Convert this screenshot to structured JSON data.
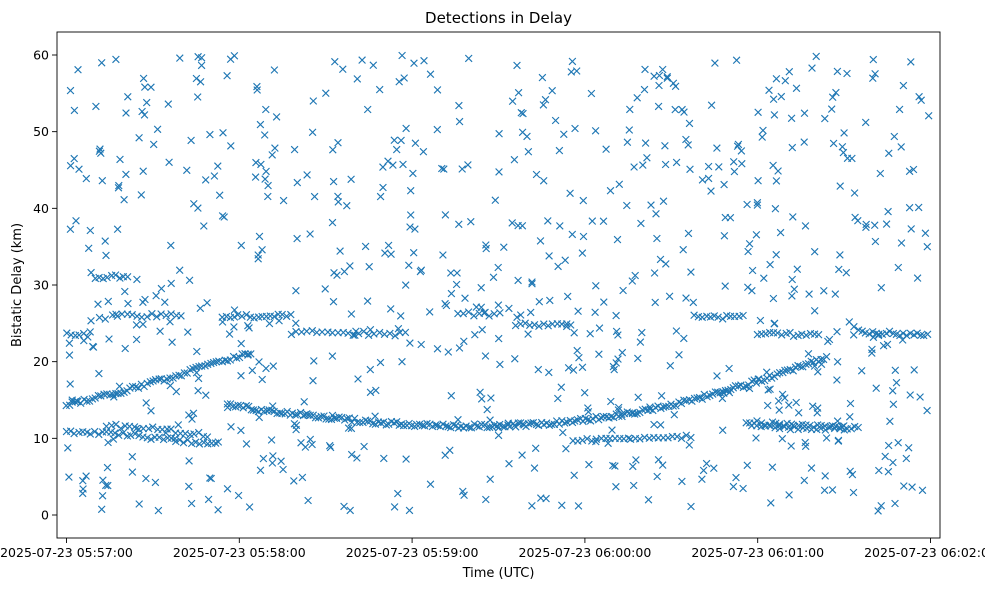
{
  "chart_data": {
    "type": "scatter",
    "title": "Detections in Delay",
    "xlabel": "Time (UTC)",
    "ylabel": "Bistatic Delay (km)",
    "marker": "x",
    "color": "#1f77b4",
    "grid": false,
    "legend": "none",
    "x_unit": "seconds after 2025-07-23 05:57:00 UTC",
    "xlim": [
      -3.3,
      303.3
    ],
    "ylim": [
      -3,
      63
    ],
    "xticks": [
      {
        "value": 0,
        "label": "2025-07-23 05:57:00"
      },
      {
        "value": 60,
        "label": "2025-07-23 05:58:00"
      },
      {
        "value": 120,
        "label": "2025-07-23 05:59:00"
      },
      {
        "value": 180,
        "label": "2025-07-23 06:00:00"
      },
      {
        "value": 240,
        "label": "2025-07-23 06:01:00"
      },
      {
        "value": 300,
        "label": "2025-07-23 06:02:00"
      }
    ],
    "yticks": [
      0,
      10,
      20,
      30,
      40,
      50,
      60
    ],
    "tracks": [
      {
        "x": [
          0,
          8,
          16,
          24,
          32,
          40,
          48,
          56,
          64
        ],
        "y": [
          14.3,
          15.0,
          15.8,
          16.6,
          17.5,
          18.4,
          19.4,
          20.3,
          21.2
        ],
        "step": 1
      },
      {
        "x": [
          56,
          70,
          90,
          110,
          130,
          150,
          170,
          190,
          210,
          230,
          250,
          264
        ],
        "y": [
          14.3,
          13.6,
          12.7,
          12.0,
          11.6,
          11.6,
          12.0,
          12.9,
          14.3,
          16.3,
          18.7,
          20.6
        ],
        "step": 0.9
      },
      {
        "x": [
          0,
          10,
          20,
          30,
          40,
          52
        ],
        "y": [
          10.8,
          10.7,
          10.5,
          10.1,
          9.7,
          9.3
        ],
        "step": 1.4
      },
      {
        "x": [
          14,
          20,
          30,
          40,
          48
        ],
        "y": [
          11.8,
          11.5,
          11.2,
          10.8,
          10.4
        ],
        "step": 1.6
      },
      {
        "x": [
          0,
          8
        ],
        "y": [
          23.6,
          23.4
        ],
        "step": 1.5
      },
      {
        "x": [
          10,
          22
        ],
        "y": [
          31.0,
          31.2
        ],
        "step": 1.4
      },
      {
        "x": [
          16,
          40
        ],
        "y": [
          26.0,
          26.0
        ],
        "step": 1.7
      },
      {
        "x": [
          54,
          78
        ],
        "y": [
          26.0,
          25.9
        ],
        "step": 1.4
      },
      {
        "x": [
          78,
          118
        ],
        "y": [
          23.8,
          23.6
        ],
        "step": 1.8
      },
      {
        "x": [
          136,
          152
        ],
        "y": [
          26.3,
          26.1
        ],
        "step": 1.8
      },
      {
        "x": [
          156,
          176
        ],
        "y": [
          24.9,
          24.7
        ],
        "step": 1.6
      },
      {
        "x": [
          176,
          196
        ],
        "y": [
          9.7,
          9.8
        ],
        "step": 1.6
      },
      {
        "x": [
          196,
          218
        ],
        "y": [
          10.1,
          10.2
        ],
        "step": 1.6
      },
      {
        "x": [
          218,
          236
        ],
        "y": [
          25.9,
          25.8
        ],
        "step": 1.4
      },
      {
        "x": [
          240,
          262
        ],
        "y": [
          23.6,
          23.5
        ],
        "step": 1.4
      },
      {
        "x": [
          236,
          275
        ],
        "y": [
          12.1,
          11.4
        ],
        "step": 1.3
      },
      {
        "x": [
          238,
          270
        ],
        "y": [
          11.6,
          11.2
        ],
        "step": 1.6
      },
      {
        "x": [
          275,
          300
        ],
        "y": [
          23.9,
          23.4
        ],
        "step": 1.2
      }
    ],
    "clutter": {
      "count": 780,
      "x_range": [
        0,
        300
      ],
      "y_range": [
        0.5,
        60
      ]
    }
  }
}
